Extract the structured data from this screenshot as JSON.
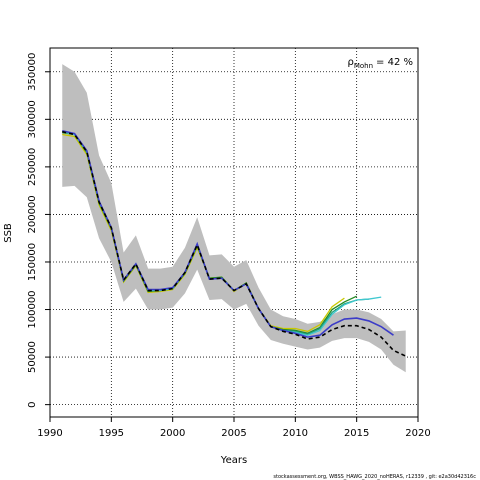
{
  "chart_data": {
    "type": "line",
    "ylabel": "SSB",
    "xlabel": "Years",
    "annotation": {
      "symbol": "ρ",
      "subscript": "Mohn",
      "text": "= 42 %"
    },
    "footnote": "stockassessment.org, WBSS_HAWG_2020_noHERAS, r12339 , git: e2a30d42316c",
    "x": [
      1991,
      1992,
      1993,
      1994,
      1995,
      1996,
      1997,
      1998,
      1999,
      2000,
      2001,
      2002,
      2003,
      2004,
      2005,
      2006,
      2007,
      2008,
      2009,
      2010,
      2011,
      2012,
      2013,
      2014,
      2015,
      2016,
      2017,
      2018,
      2019
    ],
    "band": {
      "color": "#bebebe",
      "upper": [
        358000,
        350000,
        328000,
        262000,
        233000,
        160000,
        178000,
        143000,
        143000,
        145000,
        165000,
        197000,
        157000,
        158000,
        145000,
        152000,
        123000,
        100000,
        93000,
        90000,
        85000,
        87000,
        95000,
        100000,
        100000,
        97000,
        90000,
        77000,
        78000
      ],
      "lower": [
        229000,
        230000,
        218000,
        175000,
        150000,
        108000,
        122000,
        100000,
        100000,
        102000,
        117000,
        142000,
        110000,
        111000,
        100000,
        106000,
        83000,
        68000,
        64000,
        61000,
        58000,
        60000,
        67000,
        70000,
        70000,
        66000,
        58000,
        42000,
        34000
      ]
    },
    "series": [
      {
        "color": "#c8c800",
        "width": 1.3,
        "values": [
          284000,
          282000,
          263000,
          210000,
          183000,
          129000,
          146000,
          118000,
          119000,
          121000,
          137000,
          165000,
          133000,
          134000,
          119000,
          128000,
          101000,
          83000,
          80000,
          80000,
          77000,
          84000,
          103000,
          112000,
          null,
          null,
          null,
          null,
          null
        ]
      },
      {
        "color": "#228b22",
        "width": 1.3,
        "values": [
          286000,
          284000,
          265000,
          212000,
          185000,
          130000,
          147000,
          119000,
          120000,
          122000,
          138000,
          167000,
          133000,
          134000,
          120000,
          128000,
          101000,
          82000,
          79000,
          78000,
          75000,
          81000,
          100000,
          108000,
          114000,
          null,
          null,
          null,
          null
        ]
      },
      {
        "color": "#20a080",
        "width": 1.3,
        "values": [
          287000,
          284000,
          266000,
          213000,
          186000,
          131000,
          148000,
          120000,
          120000,
          122000,
          139000,
          168000,
          132000,
          133000,
          120000,
          127000,
          101000,
          82000,
          78000,
          77000,
          74000,
          80000,
          97000,
          106000,
          110000,
          111000,
          null,
          null,
          null
        ]
      },
      {
        "color": "#40c8d0",
        "width": 1.3,
        "values": [
          287000,
          284000,
          266000,
          213000,
          186000,
          131000,
          148000,
          120000,
          120000,
          122000,
          139000,
          168000,
          132000,
          133000,
          120000,
          127000,
          101000,
          82000,
          78000,
          76000,
          73000,
          78000,
          95000,
          105000,
          110000,
          111000,
          113000,
          null,
          null
        ]
      },
      {
        "color": "#3c3cc8",
        "width": 1.6,
        "values": [
          288000,
          285000,
          267000,
          214000,
          186000,
          131000,
          148000,
          121000,
          121000,
          123000,
          139000,
          169000,
          132000,
          133000,
          120000,
          127000,
          101000,
          82000,
          78000,
          75000,
          71000,
          73000,
          84000,
          90000,
          91000,
          88000,
          82000,
          73000,
          null
        ]
      },
      {
        "color": "#000000",
        "width": 1.6,
        "dash": "4 3",
        "values": [
          287000,
          284000,
          266000,
          213000,
          186000,
          131000,
          148000,
          120000,
          120000,
          122000,
          139000,
          168000,
          132000,
          133000,
          120000,
          127000,
          101000,
          82000,
          77000,
          74000,
          69000,
          71000,
          79000,
          83000,
          83000,
          79000,
          71000,
          57000,
          51000
        ]
      }
    ],
    "xlim": [
      1990,
      2020
    ],
    "xticks": [
      1990,
      1995,
      2000,
      2005,
      2010,
      2015,
      2020
    ],
    "ylim": [
      -13000,
      375000
    ],
    "yticks": [
      0,
      50000,
      100000,
      150000,
      200000,
      250000,
      300000,
      350000
    ],
    "grid": true
  }
}
